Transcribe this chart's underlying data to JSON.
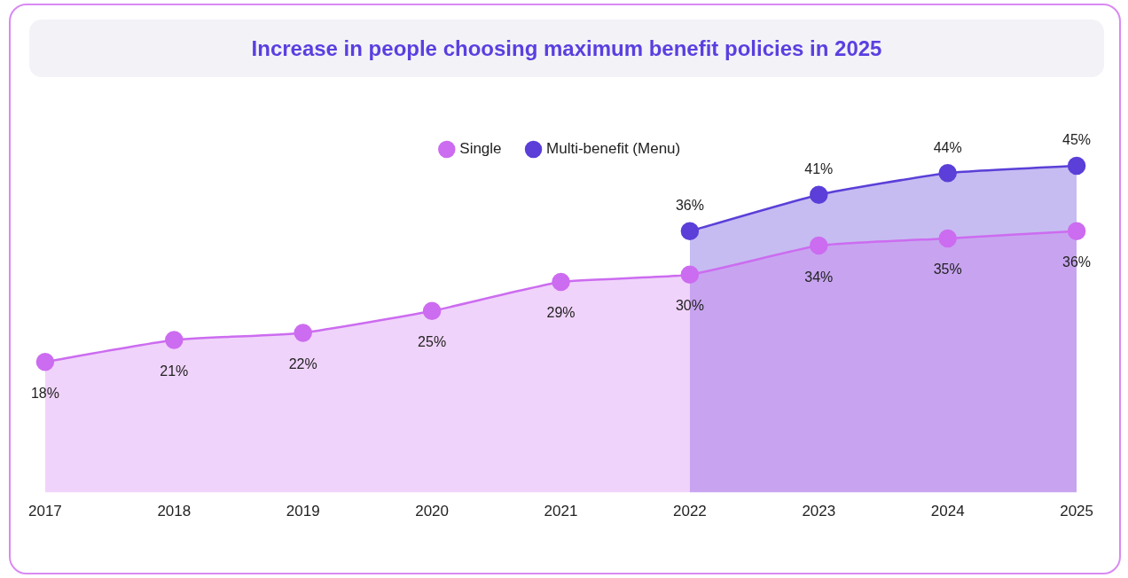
{
  "chart_data": {
    "type": "area",
    "title": "Increase in people choosing maximum benefit policies in 2025",
    "categories": [
      "2017",
      "2018",
      "2019",
      "2020",
      "2021",
      "2022",
      "2023",
      "2024",
      "2025"
    ],
    "series": [
      {
        "name": "Single",
        "color": "#cc6cf0",
        "values": [
          18,
          21,
          22,
          25,
          29,
          30,
          34,
          35,
          36
        ],
        "value_labels": [
          "18%",
          "21%",
          "22%",
          "25%",
          "29%",
          "30%",
          "34%",
          "35%",
          "36%"
        ]
      },
      {
        "name": "Multi-benefit (Menu)",
        "color": "#5b3fd8",
        "values": [
          null,
          null,
          null,
          null,
          null,
          36,
          41,
          44,
          45
        ],
        "value_labels": [
          null,
          null,
          null,
          null,
          null,
          "36%",
          "41%",
          "44%",
          "45%"
        ]
      }
    ],
    "legend": "top",
    "marker": "circle",
    "line_style": "solid",
    "grid": false,
    "tick_labels": "x",
    "data_labels": true
  }
}
